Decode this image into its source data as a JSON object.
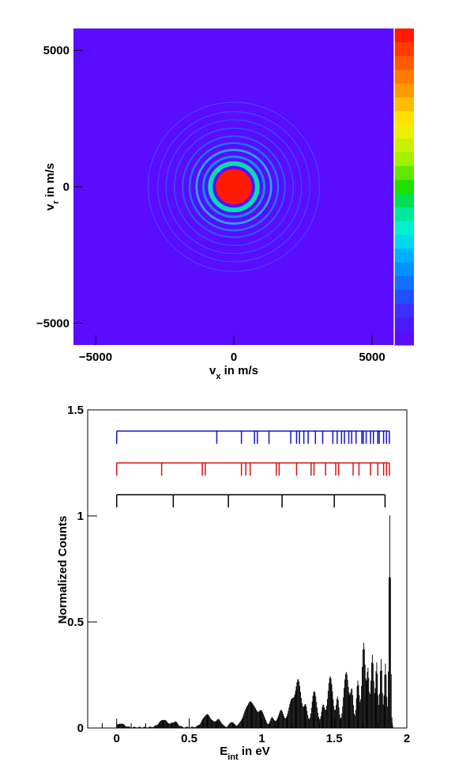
{
  "chart_data": [
    {
      "type": "heatmap",
      "xlabel": "v_x in m/s",
      "ylabel": "v_r in m/s",
      "xlim": [
        -5800,
        5800
      ],
      "ylim": [
        -5800,
        5800
      ],
      "xticks": [
        -5000,
        0,
        5000
      ],
      "yticks": [
        5000,
        0,
        -5000
      ],
      "x_tick_labels": [
        "−5000",
        "0",
        "5000"
      ],
      "y_tick_labels": [
        "5000",
        "0",
        "−5000"
      ],
      "background_color": "#5a0cff",
      "center_disk": {
        "radius": 650,
        "color": "#ff1a00"
      },
      "rings": [
        {
          "radius": 850,
          "color": "#00e0b0",
          "width": 170
        },
        {
          "radius": 1100,
          "color": "#1090e0",
          "width": 90
        },
        {
          "radius": 1350,
          "color": "#20a8ff",
          "width": 80
        },
        {
          "radius": 1600,
          "color": "#1a78e8",
          "width": 70
        },
        {
          "radius": 1850,
          "color": "#2a5cf0",
          "width": 60
        },
        {
          "radius": 2150,
          "color": "#3a48f5",
          "width": 50
        },
        {
          "radius": 2450,
          "color": "#3e46f8",
          "width": 45
        },
        {
          "radius": 2750,
          "color": "#4642f8",
          "width": 40
        },
        {
          "radius": 3100,
          "color": "#4a40fa",
          "width": 35
        }
      ],
      "colorbar": [
        "#ff1a00",
        "#ff3a00",
        "#ff5a00",
        "#ff7a00",
        "#ff9a00",
        "#ffbc00",
        "#ffe000",
        "#ecf000",
        "#c8f000",
        "#a0f000",
        "#60e800",
        "#20e000",
        "#00e050",
        "#00e8a0",
        "#00f0d0",
        "#00d8f0",
        "#00b0ff",
        "#0090ff",
        "#1070ff",
        "#2050ff",
        "#3a30ff",
        "#4a1aff",
        "#5a0cff"
      ]
    },
    {
      "type": "bar",
      "xlabel": "E_int in eV",
      "ylabel": "Normalized Counts",
      "xlim": [
        -0.2,
        2.0
      ],
      "ylim": [
        0,
        1.5
      ],
      "xticks": [
        0,
        0.5,
        1,
        1.5,
        2
      ],
      "yticks": [
        0,
        0.5,
        1,
        1.5
      ],
      "x_tick_labels": [
        "0",
        "0.5",
        "1",
        "1.5",
        "2"
      ],
      "y_tick_labels": [
        "0",
        "0.5",
        "1",
        "1.5"
      ],
      "peaks": [
        {
          "center": 0.02,
          "height": 0.02,
          "width": 0.025
        },
        {
          "center": 0.32,
          "height": 0.035,
          "width": 0.03
        },
        {
          "center": 0.4,
          "height": 0.025,
          "width": 0.02
        },
        {
          "center": 0.62,
          "height": 0.06,
          "width": 0.03
        },
        {
          "center": 0.7,
          "height": 0.035,
          "width": 0.02
        },
        {
          "center": 0.79,
          "height": 0.025,
          "width": 0.015
        },
        {
          "center": 0.92,
          "height": 0.12,
          "width": 0.04
        },
        {
          "center": 1.0,
          "height": 0.06,
          "width": 0.02
        },
        {
          "center": 1.07,
          "height": 0.045,
          "width": 0.015
        },
        {
          "center": 1.13,
          "height": 0.08,
          "width": 0.02
        },
        {
          "center": 1.2,
          "height": 0.12,
          "width": 0.02
        },
        {
          "center": 1.25,
          "height": 0.22,
          "width": 0.02
        },
        {
          "center": 1.3,
          "height": 0.1,
          "width": 0.012
        },
        {
          "center": 1.36,
          "height": 0.17,
          "width": 0.018
        },
        {
          "center": 1.42,
          "height": 0.1,
          "width": 0.012
        },
        {
          "center": 1.47,
          "height": 0.24,
          "width": 0.018
        },
        {
          "center": 1.52,
          "height": 0.14,
          "width": 0.01
        },
        {
          "center": 1.58,
          "height": 0.26,
          "width": 0.018
        },
        {
          "center": 1.62,
          "height": 0.16,
          "width": 0.01
        },
        {
          "center": 1.66,
          "height": 0.22,
          "width": 0.01
        },
        {
          "center": 1.7,
          "height": 0.4,
          "width": 0.012
        },
        {
          "center": 1.73,
          "height": 0.26,
          "width": 0.008
        },
        {
          "center": 1.76,
          "height": 0.34,
          "width": 0.01
        },
        {
          "center": 1.79,
          "height": 0.3,
          "width": 0.008
        },
        {
          "center": 1.82,
          "height": 0.32,
          "width": 0.008
        },
        {
          "center": 1.85,
          "height": 0.3,
          "width": 0.008
        },
        {
          "center": 1.88,
          "height": 1.0,
          "width": 0.006
        }
      ],
      "markers": [
        {
          "color": "#1414c8",
          "level": 1.4,
          "tick_height": 0.06,
          "positions": [
            0.0,
            0.69,
            0.86,
            0.95,
            0.97,
            1.05,
            1.2,
            1.24,
            1.26,
            1.29,
            1.32,
            1.37,
            1.42,
            1.49,
            1.52,
            1.55,
            1.57,
            1.6,
            1.62,
            1.65,
            1.69,
            1.7,
            1.72,
            1.75,
            1.77,
            1.8,
            1.81,
            1.84,
            1.86,
            1.88
          ]
        },
        {
          "color": "#d81414",
          "level": 1.25,
          "tick_height": 0.06,
          "positions": [
            0.0,
            0.31,
            0.59,
            0.61,
            0.86,
            0.89,
            0.92,
            1.1,
            1.12,
            1.24,
            1.34,
            1.36,
            1.44,
            1.51,
            1.53,
            1.63,
            1.67,
            1.75,
            1.8,
            1.84,
            1.86,
            1.88
          ]
        },
        {
          "color": "#000000",
          "level": 1.1,
          "tick_height": 0.06,
          "positions": [
            0.0,
            0.39,
            0.77,
            1.14,
            1.5,
            1.85
          ]
        }
      ]
    }
  ]
}
